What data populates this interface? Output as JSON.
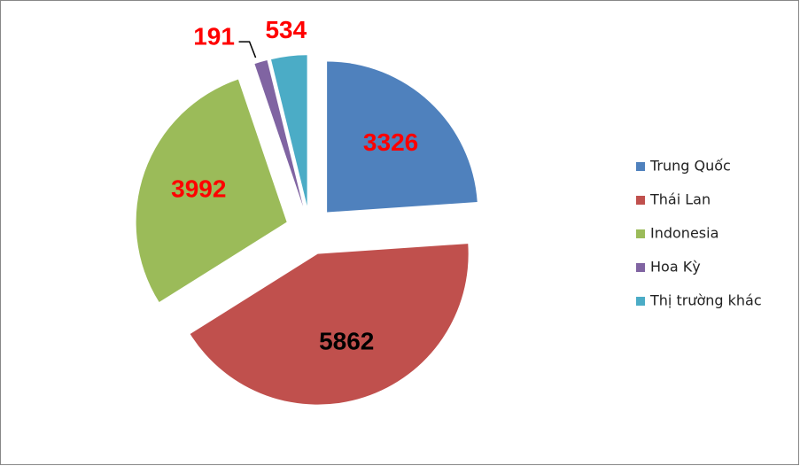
{
  "chart_data": {
    "type": "pie",
    "categories": [
      "Trung Quốc",
      "Thái Lan",
      "Indonesia",
      "Hoa Kỳ",
      "Thị trường khác"
    ],
    "values": [
      3326,
      5862,
      3992,
      191,
      534
    ],
    "colors": [
      "#4f81bd",
      "#c0504d",
      "#9bbb59",
      "#8064a2",
      "#4bacc6"
    ],
    "label_colors": [
      "#ff0000",
      "#000000",
      "#ff0000",
      "#ff0000",
      "#ff0000"
    ],
    "legend": "right"
  }
}
